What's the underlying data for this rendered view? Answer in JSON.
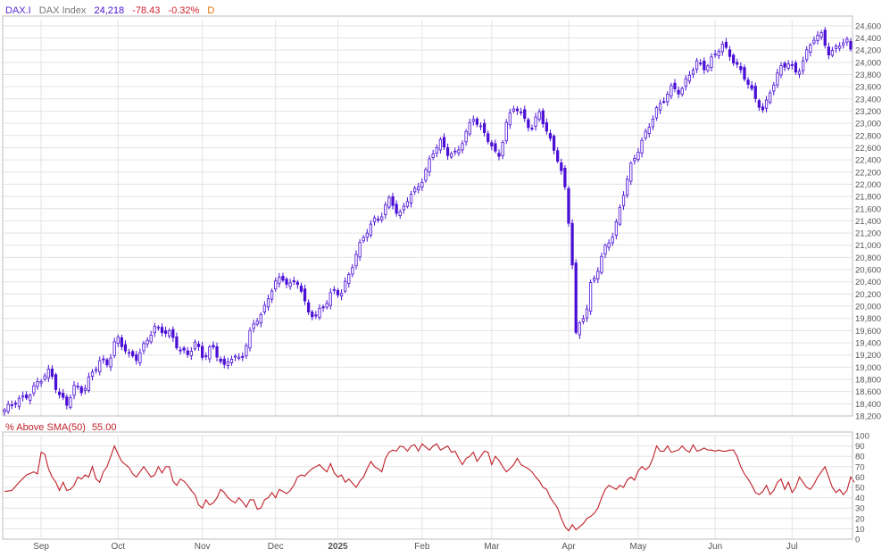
{
  "header": {
    "symbol": "DAX.I",
    "name": "DAX Index",
    "last": "24,218",
    "change": "-78.43",
    "change_pct": "-0.32%",
    "period": "D"
  },
  "colors": {
    "candle": "#4b0fd6",
    "indicator": "#c0202a",
    "symbol_text": "#5a2bd1",
    "negative": "#d0202a",
    "period": "#e07000",
    "grid": "#e3e3e3",
    "axis_text": "#555555"
  },
  "chart_data": [
    {
      "type": "candlestick",
      "title": "DAX.I  DAX Index  24,218  -78.43  -0.32%  D",
      "ylim": [
        18200,
        24700
      ],
      "y_ticks": [
        18200,
        18400,
        18600,
        18800,
        19000,
        19200,
        19400,
        19600,
        19800,
        20000,
        20200,
        20400,
        20600,
        20800,
        21000,
        21200,
        21400,
        21600,
        21800,
        22000,
        22200,
        22400,
        22600,
        22800,
        23000,
        23200,
        23400,
        23600,
        23800,
        24000,
        24200,
        24400,
        24600
      ],
      "y_tick_labels": [
        "18,200",
        "18,400",
        "18,600",
        "18,800",
        "19,000",
        "19,200",
        "19,400",
        "19,600",
        "19,800",
        "20,000",
        "20,200",
        "20,400",
        "20,600",
        "20,800",
        "21,000",
        "21,200",
        "21,400",
        "21,600",
        "21,800",
        "22,000",
        "22,200",
        "22,400",
        "22,600",
        "22,800",
        "23,000",
        "23,200",
        "23,400",
        "23,600",
        "23,800",
        "24,000",
        "24,200",
        "24,400",
        "24,600"
      ],
      "grid": true,
      "close_path": [
        [
          0,
          18300
        ],
        [
          3,
          18450
        ],
        [
          6,
          18550
        ],
        [
          8,
          18750
        ],
        [
          11,
          18950
        ],
        [
          13,
          18550
        ],
        [
          15,
          18400
        ],
        [
          17,
          18700
        ],
        [
          19,
          18600
        ],
        [
          21,
          18900
        ],
        [
          23,
          19100
        ],
        [
          25,
          19050
        ],
        [
          27,
          19500
        ],
        [
          30,
          19200
        ],
        [
          32,
          19150
        ],
        [
          34,
          19400
        ],
        [
          36,
          19650
        ],
        [
          38,
          19600
        ],
        [
          40,
          19550
        ],
        [
          42,
          19300
        ],
        [
          44,
          19200
        ],
        [
          46,
          19400
        ],
        [
          48,
          19150
        ],
        [
          50,
          19350
        ],
        [
          53,
          19000
        ],
        [
          55,
          19200
        ],
        [
          57,
          19100
        ],
        [
          59,
          19550
        ],
        [
          61,
          19800
        ],
        [
          63,
          20000
        ],
        [
          65,
          20400
        ],
        [
          67,
          20450
        ],
        [
          69,
          20350
        ],
        [
          71,
          20400
        ],
        [
          73,
          19900
        ],
        [
          75,
          19850
        ],
        [
          77,
          20000
        ],
        [
          79,
          20250
        ],
        [
          81,
          20200
        ],
        [
          83,
          20500
        ],
        [
          85,
          20900
        ],
        [
          87,
          21200
        ],
        [
          89,
          21400
        ],
        [
          91,
          21500
        ],
        [
          93,
          21800
        ],
        [
          95,
          21450
        ],
        [
          97,
          21750
        ],
        [
          99,
          21900
        ],
        [
          101,
          22100
        ],
        [
          103,
          22500
        ],
        [
          105,
          22700
        ],
        [
          107,
          22500
        ],
        [
          109,
          22500
        ],
        [
          111,
          22800
        ],
        [
          113,
          23100
        ],
        [
          115,
          22900
        ],
        [
          117,
          22700
        ],
        [
          119,
          22400
        ],
        [
          121,
          23000
        ],
        [
          123,
          23300
        ],
        [
          125,
          23100
        ],
        [
          127,
          22900
        ],
        [
          129,
          23200
        ],
        [
          131,
          22800
        ],
        [
          133,
          22500
        ],
        [
          135,
          22000
        ],
        [
          136,
          21400
        ],
        [
          137,
          20600
        ],
        [
          138,
          19200
        ],
        [
          139,
          20000
        ],
        [
          140,
          19700
        ],
        [
          141,
          20300
        ],
        [
          143,
          20600
        ],
        [
          145,
          21000
        ],
        [
          147,
          21200
        ],
        [
          149,
          21800
        ],
        [
          151,
          22300
        ],
        [
          153,
          22600
        ],
        [
          155,
          22900
        ],
        [
          157,
          23200
        ],
        [
          159,
          23400
        ],
        [
          161,
          23600
        ],
        [
          163,
          23500
        ],
        [
          165,
          23800
        ],
        [
          167,
          24000
        ],
        [
          169,
          23900
        ],
        [
          171,
          24100
        ],
        [
          173,
          24300
        ],
        [
          175,
          24100
        ],
        [
          177,
          23900
        ],
        [
          179,
          23700
        ],
        [
          181,
          23400
        ],
        [
          183,
          23200
        ],
        [
          185,
          23600
        ],
        [
          187,
          23900
        ],
        [
          189,
          24000
        ],
        [
          191,
          23800
        ],
        [
          193,
          24100
        ],
        [
          195,
          24400
        ],
        [
          197,
          24450
        ],
        [
          199,
          24100
        ],
        [
          201,
          24300
        ],
        [
          203,
          24350
        ],
        [
          204,
          24218
        ]
      ],
      "x_month_labels": [
        {
          "bar": 10,
          "label": "Sep"
        },
        {
          "bar": 31,
          "label": "Oct"
        },
        {
          "bar": 54,
          "label": "Nov"
        },
        {
          "bar": 74,
          "label": "Dec"
        },
        {
          "bar": 91,
          "label": "2025"
        },
        {
          "bar": 114,
          "label": "Feb"
        },
        {
          "bar": 133,
          "label": "Mar"
        },
        {
          "bar": 154,
          "label": "Apr"
        },
        {
          "bar": 173,
          "label": "May"
        },
        {
          "bar": 194,
          "label": "Jun"
        },
        {
          "bar": 215,
          "label": "Jul"
        }
      ],
      "bar_count": 232
    },
    {
      "type": "line",
      "title": "% Above SMA(50)",
      "title_value": "55.00",
      "ylim": [
        0,
        100
      ],
      "y_ticks": [
        0,
        10,
        20,
        30,
        40,
        50,
        60,
        70,
        80,
        90,
        100
      ],
      "grid": true,
      "points": [
        [
          0,
          46
        ],
        [
          2,
          47
        ],
        [
          4,
          55
        ],
        [
          6,
          62
        ],
        [
          8,
          65
        ],
        [
          9,
          63
        ],
        [
          10,
          84
        ],
        [
          11,
          82
        ],
        [
          12,
          68
        ],
        [
          13,
          60
        ],
        [
          14,
          55
        ],
        [
          15,
          47
        ],
        [
          16,
          55
        ],
        [
          17,
          47
        ],
        [
          18,
          48
        ],
        [
          19,
          52
        ],
        [
          20,
          60
        ],
        [
          21,
          58
        ],
        [
          22,
          62
        ],
        [
          23,
          60
        ],
        [
          24,
          70
        ],
        [
          25,
          58
        ],
        [
          26,
          55
        ],
        [
          27,
          65
        ],
        [
          28,
          70
        ],
        [
          29,
          80
        ],
        [
          30,
          90
        ],
        [
          31,
          82
        ],
        [
          32,
          75
        ],
        [
          33,
          72
        ],
        [
          34,
          69
        ],
        [
          35,
          63
        ],
        [
          36,
          60
        ],
        [
          37,
          65
        ],
        [
          38,
          70
        ],
        [
          39,
          65
        ],
        [
          40,
          60
        ],
        [
          41,
          62
        ],
        [
          42,
          70
        ],
        [
          43,
          64
        ],
        [
          44,
          70
        ],
        [
          45,
          70
        ],
        [
          46,
          56
        ],
        [
          47,
          52
        ],
        [
          48,
          58
        ],
        [
          49,
          56
        ],
        [
          50,
          52
        ],
        [
          51,
          47
        ],
        [
          52,
          43
        ],
        [
          53,
          33
        ],
        [
          54,
          30
        ],
        [
          55,
          38
        ],
        [
          56,
          33
        ],
        [
          57,
          35
        ],
        [
          58,
          40
        ],
        [
          59,
          48
        ],
        [
          60,
          45
        ],
        [
          61,
          40
        ],
        [
          62,
          37
        ],
        [
          63,
          35
        ],
        [
          64,
          40
        ],
        [
          65,
          36
        ],
        [
          66,
          31
        ],
        [
          67,
          38
        ],
        [
          68,
          38
        ],
        [
          69,
          29
        ],
        [
          70,
          30
        ],
        [
          71,
          38
        ],
        [
          72,
          40
        ],
        [
          73,
          45
        ],
        [
          74,
          40
        ],
        [
          75,
          48
        ],
        [
          76,
          46
        ],
        [
          77,
          44
        ],
        [
          78,
          47
        ],
        [
          79,
          52
        ],
        [
          80,
          60
        ],
        [
          81,
          62
        ],
        [
          82,
          61
        ],
        [
          83,
          65
        ],
        [
          84,
          68
        ],
        [
          85,
          70
        ],
        [
          86,
          72
        ],
        [
          87,
          68
        ],
        [
          88,
          65
        ],
        [
          89,
          73
        ],
        [
          90,
          64
        ],
        [
          91,
          60
        ],
        [
          92,
          62
        ],
        [
          93,
          55
        ],
        [
          94,
          58
        ],
        [
          95,
          54
        ],
        [
          96,
          50
        ],
        [
          97,
          56
        ],
        [
          98,
          60
        ],
        [
          99,
          68
        ],
        [
          100,
          75
        ],
        [
          101,
          70
        ],
        [
          102,
          68
        ],
        [
          103,
          65
        ],
        [
          104,
          78
        ],
        [
          105,
          84
        ],
        [
          106,
          86
        ],
        [
          107,
          85
        ],
        [
          108,
          90
        ],
        [
          109,
          89
        ],
        [
          110,
          85
        ],
        [
          111,
          90
        ],
        [
          112,
          91
        ],
        [
          113,
          85
        ],
        [
          114,
          92
        ],
        [
          115,
          89
        ],
        [
          116,
          86
        ],
        [
          117,
          90
        ],
        [
          118,
          92
        ],
        [
          119,
          86
        ],
        [
          120,
          88
        ],
        [
          121,
          90
        ],
        [
          122,
          84
        ],
        [
          123,
          85
        ],
        [
          124,
          78
        ],
        [
          125,
          72
        ],
        [
          126,
          78
        ],
        [
          127,
          80
        ],
        [
          128,
          84
        ],
        [
          129,
          75
        ],
        [
          130,
          80
        ],
        [
          131,
          85
        ],
        [
          132,
          84
        ],
        [
          133,
          72
        ],
        [
          134,
          80
        ],
        [
          135,
          76
        ],
        [
          136,
          70
        ],
        [
          137,
          65
        ],
        [
          138,
          68
        ],
        [
          139,
          72
        ],
        [
          140,
          78
        ],
        [
          141,
          72
        ],
        [
          142,
          70
        ],
        [
          143,
          68
        ],
        [
          144,
          65
        ],
        [
          145,
          60
        ],
        [
          146,
          56
        ],
        [
          147,
          50
        ],
        [
          148,
          48
        ],
        [
          149,
          40
        ],
        [
          150,
          35
        ],
        [
          151,
          30
        ],
        [
          152,
          20
        ],
        [
          153,
          12
        ],
        [
          154,
          8
        ],
        [
          155,
          14
        ],
        [
          156,
          9
        ],
        [
          157,
          12
        ],
        [
          158,
          15
        ],
        [
          159,
          20
        ],
        [
          160,
          22
        ],
        [
          161,
          25
        ],
        [
          162,
          30
        ],
        [
          163,
          40
        ],
        [
          164,
          48
        ],
        [
          165,
          52
        ],
        [
          166,
          50
        ],
        [
          167,
          48
        ],
        [
          168,
          52
        ],
        [
          169,
          50
        ],
        [
          170,
          57
        ],
        [
          171,
          60
        ],
        [
          172,
          57
        ],
        [
          173,
          66
        ],
        [
          174,
          70
        ],
        [
          175,
          67
        ],
        [
          176,
          70
        ],
        [
          177,
          78
        ],
        [
          178,
          90
        ],
        [
          179,
          85
        ],
        [
          180,
          85
        ],
        [
          181,
          90
        ],
        [
          182,
          84
        ],
        [
          183,
          85
        ],
        [
          184,
          86
        ],
        [
          185,
          90
        ],
        [
          186,
          86
        ],
        [
          187,
          84
        ],
        [
          188,
          91
        ],
        [
          189,
          85
        ],
        [
          190,
          86
        ],
        [
          191,
          88
        ],
        [
          192,
          86
        ],
        [
          193,
          86
        ],
        [
          194,
          85
        ],
        [
          195,
          86
        ],
        [
          196,
          85
        ],
        [
          197,
          85
        ],
        [
          198,
          86
        ],
        [
          199,
          86
        ],
        [
          200,
          80
        ],
        [
          201,
          70
        ],
        [
          202,
          63
        ],
        [
          203,
          58
        ],
        [
          204,
          52
        ],
        [
          205,
          45
        ],
        [
          206,
          43
        ],
        [
          207,
          46
        ],
        [
          208,
          52
        ],
        [
          209,
          43
        ],
        [
          210,
          47
        ],
        [
          211,
          55
        ],
        [
          212,
          58
        ],
        [
          213,
          48
        ],
        [
          214,
          55
        ],
        [
          215,
          45
        ],
        [
          216,
          50
        ],
        [
          217,
          60
        ],
        [
          218,
          55
        ],
        [
          219,
          50
        ],
        [
          220,
          48
        ],
        [
          221,
          53
        ],
        [
          222,
          60
        ],
        [
          223,
          65
        ],
        [
          224,
          70
        ],
        [
          225,
          60
        ],
        [
          226,
          50
        ],
        [
          227,
          45
        ],
        [
          228,
          48
        ],
        [
          229,
          43
        ],
        [
          230,
          47
        ],
        [
          231,
          60
        ],
        [
          232,
          55
        ]
      ]
    }
  ]
}
